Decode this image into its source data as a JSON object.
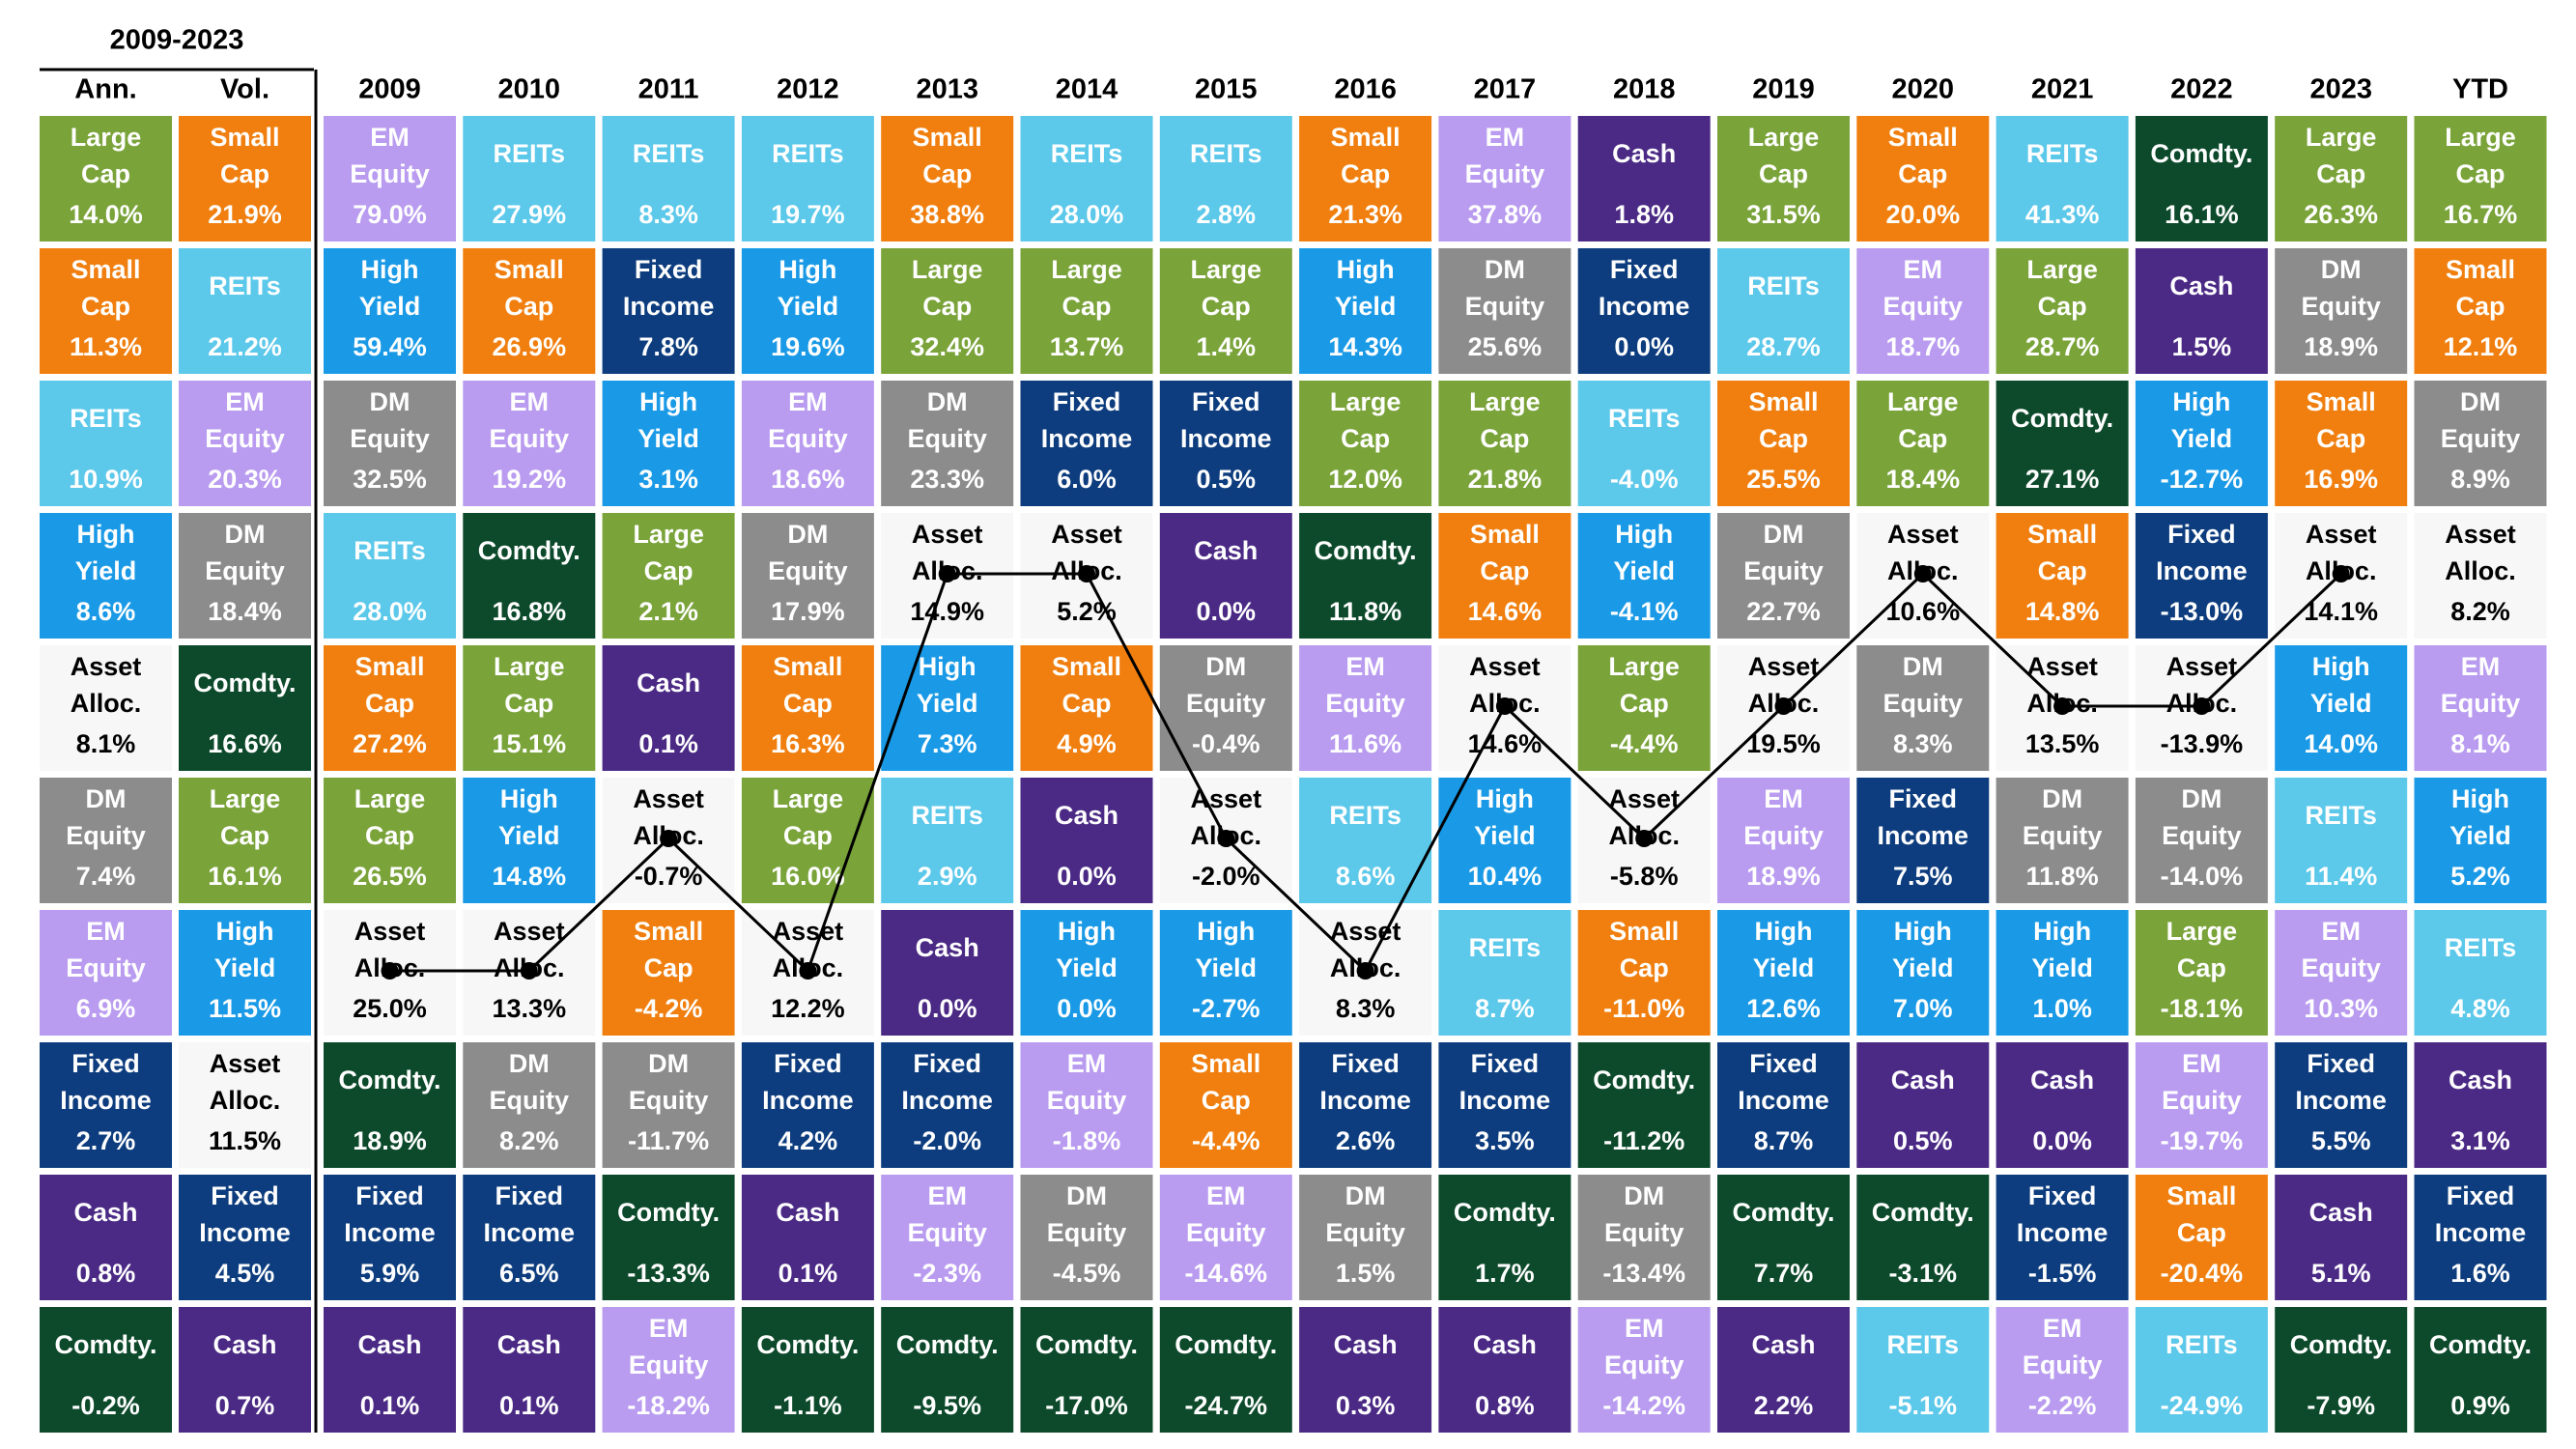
{
  "chart_data": {
    "type": "quilt",
    "group_title": "2009-2023",
    "line_color": "#000000",
    "class_styles": {
      "Large Cap": {
        "fill": "#7aa33a",
        "text": "#ffffff"
      },
      "Small Cap": {
        "fill": "#f07f0f",
        "text": "#ffffff"
      },
      "REITs": {
        "fill": "#5cc8ea",
        "text": "#ffffff"
      },
      "High Yield": {
        "fill": "#1a9ae6",
        "text": "#ffffff"
      },
      "Asset Alloc.": {
        "fill": "#f7f7f7",
        "text": "#000000"
      },
      "DM Equity": {
        "fill": "#8c8c8c",
        "text": "#ffffff"
      },
      "EM Equity": {
        "fill": "#b99cf0",
        "text": "#ffffff"
      },
      "Fixed Income": {
        "fill": "#0d3d7e",
        "text": "#ffffff"
      },
      "Cash": {
        "fill": "#4b2a85",
        "text": "#ffffff"
      },
      "Comdty.": {
        "fill": "#0d4a2b",
        "text": "#ffffff"
      }
    },
    "columns": [
      {
        "name": "Ann.",
        "labels": [
          "Large Cap",
          "Small Cap",
          "REITs",
          "High Yield",
          "Asset Alloc.",
          "DM Equity",
          "EM Equity",
          "Fixed Income",
          "Cash",
          "Comdty."
        ],
        "values": [
          14.0,
          11.3,
          10.9,
          8.6,
          8.1,
          7.4,
          6.9,
          2.7,
          0.8,
          -0.2
        ],
        "value_labels": [
          "14.0%",
          "11.3%",
          "10.9%",
          "8.6%",
          "8.1%",
          "7.4%",
          "6.9%",
          "2.7%",
          "0.8%",
          "-0.2%"
        ]
      },
      {
        "name": "Vol.",
        "labels": [
          "Small Cap",
          "REITs",
          "EM Equity",
          "DM Equity",
          "Comdty.",
          "Large Cap",
          "High Yield",
          "Asset Alloc.",
          "Fixed Income",
          "Cash"
        ],
        "values": [
          21.9,
          21.2,
          20.3,
          18.4,
          16.6,
          16.1,
          11.5,
          11.5,
          4.5,
          0.7
        ],
        "value_labels": [
          "21.9%",
          "21.2%",
          "20.3%",
          "18.4%",
          "16.6%",
          "16.1%",
          "11.5%",
          "11.5%",
          "4.5%",
          "0.7%"
        ]
      },
      {
        "name": "2009",
        "connected": true,
        "labels": [
          "EM Equity",
          "High Yield",
          "DM Equity",
          "REITs",
          "Small Cap",
          "Large Cap",
          "Asset Alloc.",
          "Comdty.",
          "Fixed Income",
          "Cash"
        ],
        "values": [
          79.0,
          59.4,
          32.5,
          28.0,
          27.2,
          26.5,
          25.0,
          18.9,
          5.9,
          0.1
        ],
        "value_labels": [
          "79.0%",
          "59.4%",
          "32.5%",
          "28.0%",
          "27.2%",
          "26.5%",
          "25.0%",
          "18.9%",
          "5.9%",
          "0.1%"
        ]
      },
      {
        "name": "2010",
        "connected": true,
        "labels": [
          "REITs",
          "Small Cap",
          "EM Equity",
          "Comdty.",
          "Large Cap",
          "High Yield",
          "Asset Alloc.",
          "DM Equity",
          "Fixed Income",
          "Cash"
        ],
        "values": [
          27.9,
          26.9,
          19.2,
          16.8,
          15.1,
          14.8,
          13.3,
          8.2,
          6.5,
          0.1
        ],
        "value_labels": [
          "27.9%",
          "26.9%",
          "19.2%",
          "16.8%",
          "15.1%",
          "14.8%",
          "13.3%",
          "8.2%",
          "6.5%",
          "0.1%"
        ]
      },
      {
        "name": "2011",
        "connected": true,
        "labels": [
          "REITs",
          "Fixed Income",
          "High Yield",
          "Large Cap",
          "Cash",
          "Asset Alloc.",
          "Small Cap",
          "DM Equity",
          "Comdty.",
          "EM Equity"
        ],
        "values": [
          8.3,
          7.8,
          3.1,
          2.1,
          0.1,
          -0.7,
          -4.2,
          -11.7,
          -13.3,
          -18.2
        ],
        "value_labels": [
          "8.3%",
          "7.8%",
          "3.1%",
          "2.1%",
          "0.1%",
          "-0.7%",
          "-4.2%",
          "-11.7%",
          "-13.3%",
          "-18.2%"
        ]
      },
      {
        "name": "2012",
        "connected": true,
        "labels": [
          "REITs",
          "High Yield",
          "EM Equity",
          "DM Equity",
          "Small Cap",
          "Large Cap",
          "Asset Alloc.",
          "Fixed Income",
          "Cash",
          "Comdty."
        ],
        "values": [
          19.7,
          19.6,
          18.6,
          17.9,
          16.3,
          16.0,
          12.2,
          4.2,
          0.1,
          -1.1
        ],
        "value_labels": [
          "19.7%",
          "19.6%",
          "18.6%",
          "17.9%",
          "16.3%",
          "16.0%",
          "12.2%",
          "4.2%",
          "0.1%",
          "-1.1%"
        ]
      },
      {
        "name": "2013",
        "connected": true,
        "labels": [
          "Small Cap",
          "Large Cap",
          "DM Equity",
          "Asset Alloc.",
          "High Yield",
          "REITs",
          "Cash",
          "Fixed Income",
          "EM Equity",
          "Comdty."
        ],
        "values": [
          38.8,
          32.4,
          23.3,
          14.9,
          7.3,
          2.9,
          0.0,
          -2.0,
          -2.3,
          -9.5
        ],
        "value_labels": [
          "38.8%",
          "32.4%",
          "23.3%",
          "14.9%",
          "7.3%",
          "2.9%",
          "0.0%",
          "-2.0%",
          "-2.3%",
          "-9.5%"
        ]
      },
      {
        "name": "2014",
        "connected": true,
        "labels": [
          "REITs",
          "Large Cap",
          "Fixed Income",
          "Asset Alloc.",
          "Small Cap",
          "Cash",
          "High Yield",
          "EM Equity",
          "DM Equity",
          "Comdty."
        ],
        "values": [
          28.0,
          13.7,
          6.0,
          5.2,
          4.9,
          0.0,
          0.0,
          -1.8,
          -4.5,
          -17.0
        ],
        "value_labels": [
          "28.0%",
          "13.7%",
          "6.0%",
          "5.2%",
          "4.9%",
          "0.0%",
          "0.0%",
          "-1.8%",
          "-4.5%",
          "-17.0%"
        ]
      },
      {
        "name": "2015",
        "connected": true,
        "labels": [
          "REITs",
          "Large Cap",
          "Fixed Income",
          "Cash",
          "DM Equity",
          "Asset Alloc.",
          "High Yield",
          "Small Cap",
          "EM Equity",
          "Comdty."
        ],
        "values": [
          2.8,
          1.4,
          0.5,
          0.0,
          -0.4,
          -2.0,
          -2.7,
          -4.4,
          -14.6,
          -24.7
        ],
        "value_labels": [
          "2.8%",
          "1.4%",
          "0.5%",
          "0.0%",
          "-0.4%",
          "-2.0%",
          "-2.7%",
          "-4.4%",
          "-14.6%",
          "-24.7%"
        ]
      },
      {
        "name": "2016",
        "connected": true,
        "labels": [
          "Small Cap",
          "High Yield",
          "Large Cap",
          "Comdty.",
          "EM Equity",
          "REITs",
          "Asset Alloc.",
          "Fixed Income",
          "DM Equity",
          "Cash"
        ],
        "values": [
          21.3,
          14.3,
          12.0,
          11.8,
          11.6,
          8.6,
          8.3,
          2.6,
          1.5,
          0.3
        ],
        "value_labels": [
          "21.3%",
          "14.3%",
          "12.0%",
          "11.8%",
          "11.6%",
          "8.6%",
          "8.3%",
          "2.6%",
          "1.5%",
          "0.3%"
        ]
      },
      {
        "name": "2017",
        "connected": true,
        "labels": [
          "EM Equity",
          "DM Equity",
          "Large Cap",
          "Small Cap",
          "Asset Alloc.",
          "High Yield",
          "REITs",
          "Fixed Income",
          "Comdty.",
          "Cash"
        ],
        "values": [
          37.8,
          25.6,
          21.8,
          14.6,
          14.6,
          10.4,
          8.7,
          3.5,
          1.7,
          0.8
        ],
        "value_labels": [
          "37.8%",
          "25.6%",
          "21.8%",
          "14.6%",
          "14.6%",
          "10.4%",
          "8.7%",
          "3.5%",
          "1.7%",
          "0.8%"
        ]
      },
      {
        "name": "2018",
        "connected": true,
        "labels": [
          "Cash",
          "Fixed Income",
          "REITs",
          "High Yield",
          "Large Cap",
          "Asset Alloc.",
          "Small Cap",
          "Comdty.",
          "DM Equity",
          "EM Equity"
        ],
        "values": [
          1.8,
          0.0,
          -4.0,
          -4.1,
          -4.4,
          -5.8,
          -11.0,
          -11.2,
          -13.4,
          -14.2
        ],
        "value_labels": [
          "1.8%",
          "0.0%",
          "-4.0%",
          "-4.1%",
          "-4.4%",
          "-5.8%",
          "-11.0%",
          "-11.2%",
          "-13.4%",
          "-14.2%"
        ]
      },
      {
        "name": "2019",
        "connected": true,
        "labels": [
          "Large Cap",
          "REITs",
          "Small Cap",
          "DM Equity",
          "Asset Alloc.",
          "EM Equity",
          "High Yield",
          "Fixed Income",
          "Comdty.",
          "Cash"
        ],
        "values": [
          31.5,
          28.7,
          25.5,
          22.7,
          19.5,
          18.9,
          12.6,
          8.7,
          7.7,
          2.2
        ],
        "value_labels": [
          "31.5%",
          "28.7%",
          "25.5%",
          "22.7%",
          "19.5%",
          "18.9%",
          "12.6%",
          "8.7%",
          "7.7%",
          "2.2%"
        ]
      },
      {
        "name": "2020",
        "connected": true,
        "labels": [
          "Small Cap",
          "EM Equity",
          "Large Cap",
          "Asset Alloc.",
          "DM Equity",
          "Fixed Income",
          "High Yield",
          "Cash",
          "Comdty.",
          "REITs"
        ],
        "values": [
          20.0,
          18.7,
          18.4,
          10.6,
          8.3,
          7.5,
          7.0,
          0.5,
          -3.1,
          -5.1
        ],
        "value_labels": [
          "20.0%",
          "18.7%",
          "18.4%",
          "10.6%",
          "8.3%",
          "7.5%",
          "7.0%",
          "0.5%",
          "-3.1%",
          "-5.1%"
        ]
      },
      {
        "name": "2021",
        "connected": true,
        "labels": [
          "REITs",
          "Large Cap",
          "Comdty.",
          "Small Cap",
          "Asset Alloc.",
          "DM Equity",
          "High Yield",
          "Cash",
          "Fixed Income",
          "EM Equity"
        ],
        "values": [
          41.3,
          28.7,
          27.1,
          14.8,
          13.5,
          11.8,
          1.0,
          0.0,
          -1.5,
          -2.2
        ],
        "value_labels": [
          "41.3%",
          "28.7%",
          "27.1%",
          "14.8%",
          "13.5%",
          "11.8%",
          "1.0%",
          "0.0%",
          "-1.5%",
          "-2.2%"
        ]
      },
      {
        "name": "2022",
        "connected": true,
        "labels": [
          "Comdty.",
          "Cash",
          "High Yield",
          "Fixed Income",
          "Asset Alloc.",
          "DM Equity",
          "Large Cap",
          "EM Equity",
          "Small Cap",
          "REITs"
        ],
        "values": [
          16.1,
          1.5,
          -12.7,
          -13.0,
          -13.9,
          -14.0,
          -18.1,
          -19.7,
          -20.4,
          -24.9
        ],
        "value_labels": [
          "16.1%",
          "1.5%",
          "-12.7%",
          "-13.0%",
          "-13.9%",
          "-14.0%",
          "-18.1%",
          "-19.7%",
          "-20.4%",
          "-24.9%"
        ]
      },
      {
        "name": "2023",
        "connected": true,
        "labels": [
          "Large Cap",
          "DM Equity",
          "Small Cap",
          "Asset Alloc.",
          "High Yield",
          "REITs",
          "EM Equity",
          "Fixed Income",
          "Cash",
          "Comdty."
        ],
        "values": [
          26.3,
          18.9,
          16.9,
          14.1,
          14.0,
          11.4,
          10.3,
          5.5,
          5.1,
          -7.9
        ],
        "value_labels": [
          "26.3%",
          "18.9%",
          "16.9%",
          "14.1%",
          "14.0%",
          "11.4%",
          "10.3%",
          "5.5%",
          "5.1%",
          "-7.9%"
        ]
      },
      {
        "name": "YTD",
        "labels": [
          "Large Cap",
          "Small Cap",
          "DM Equity",
          "Asset Alloc.",
          "EM Equity",
          "High Yield",
          "REITs",
          "Cash",
          "Fixed Income",
          "Comdty."
        ],
        "values": [
          16.7,
          12.1,
          8.9,
          8.2,
          8.1,
          5.2,
          4.8,
          3.1,
          1.6,
          0.9
        ],
        "value_labels": [
          "16.7%",
          "12.1%",
          "8.9%",
          "8.2%",
          "8.1%",
          "5.2%",
          "4.8%",
          "3.1%",
          "1.6%",
          "0.9%"
        ]
      }
    ]
  }
}
